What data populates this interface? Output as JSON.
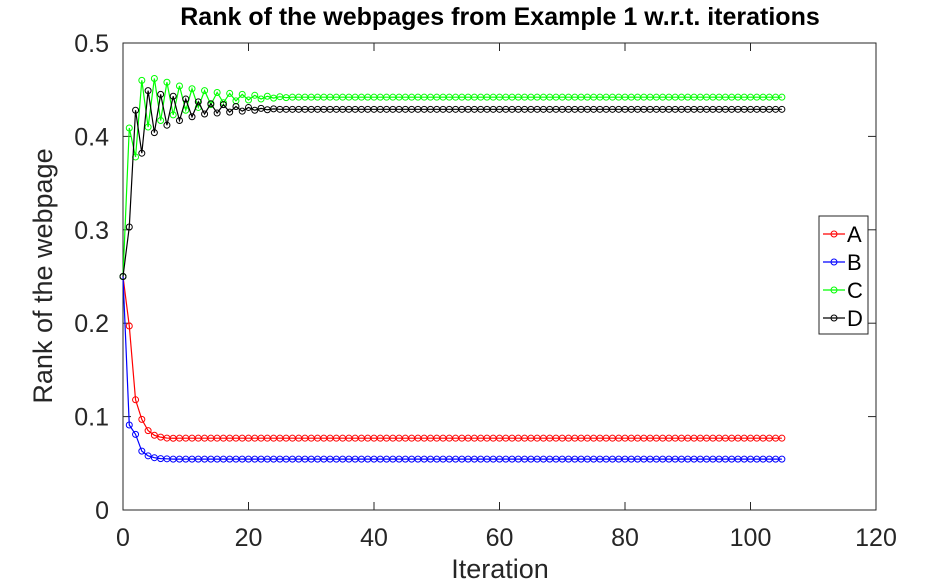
{
  "chart_data": {
    "type": "line",
    "title": "Rank of the webpages from Example 1 w.r.t. iterations",
    "xlabel": "Iteration",
    "ylabel": "Rank of the webpage",
    "xlim": [
      0,
      120
    ],
    "ylim": [
      0,
      0.5
    ],
    "xticks": [
      0,
      20,
      40,
      60,
      80,
      100,
      120
    ],
    "yticks": [
      0,
      0.1,
      0.2,
      0.3,
      0.4,
      0.5
    ],
    "xtick_labels": [
      "0",
      "20",
      "40",
      "60",
      "80",
      "100",
      "120"
    ],
    "ytick_labels": [
      "0",
      "0.1",
      "0.2",
      "0.3",
      "0.4",
      "0.5"
    ],
    "grid": false,
    "legend_position": "right",
    "iterations": 105,
    "series": [
      {
        "name": "A",
        "color": "#ff0000",
        "values": [
          0.25,
          0.197,
          0.118,
          0.097,
          0.085,
          0.08,
          0.078,
          0.077,
          0.0768
        ],
        "steady": 0.0769
      },
      {
        "name": "B",
        "color": "#0000ff",
        "values": [
          0.25,
          0.091,
          0.081,
          0.063,
          0.058,
          0.056,
          0.055,
          0.0548
        ],
        "steady": 0.0545
      },
      {
        "name": "C",
        "color": "#00ff00",
        "values": [
          0.25,
          0.409,
          0.378,
          0.46,
          0.41,
          0.462,
          0.417,
          0.458,
          0.423,
          0.454,
          0.428,
          0.451,
          0.431,
          0.449,
          0.434,
          0.447,
          0.436,
          0.446,
          0.438,
          0.445,
          0.439,
          0.444,
          0.44,
          0.443,
          0.441,
          0.4425,
          0.4415
        ],
        "steady": 0.442
      },
      {
        "name": "D",
        "color": "#000000",
        "values": [
          0.25,
          0.303,
          0.428,
          0.382,
          0.449,
          0.404,
          0.445,
          0.412,
          0.443,
          0.417,
          0.44,
          0.421,
          0.437,
          0.424,
          0.435,
          0.425,
          0.434,
          0.426,
          0.432,
          0.427,
          0.431,
          0.428,
          0.43,
          0.4285,
          0.4295,
          0.429
        ],
        "steady": 0.429
      }
    ]
  }
}
